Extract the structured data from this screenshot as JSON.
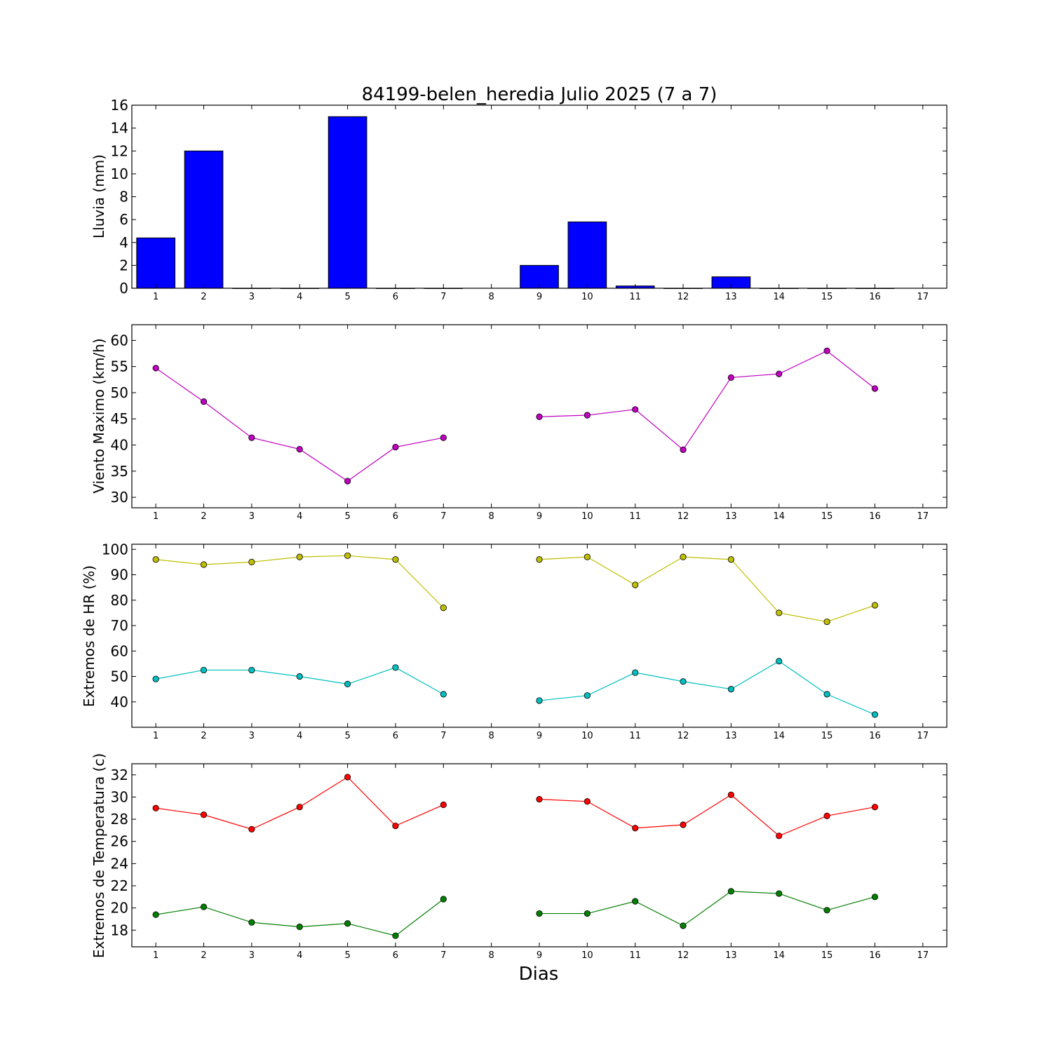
{
  "chart_data": [
    {
      "type": "bar",
      "title": "84199-belen_heredia Julio 2025  (7 a 7)",
      "ylabel": "Lluvia (mm)",
      "xlabel": "",
      "ylim": [
        0,
        16
      ],
      "yticks": [
        0,
        2,
        4,
        6,
        8,
        10,
        12,
        14,
        16
      ],
      "xticks": [
        1,
        2,
        3,
        4,
        5,
        6,
        7,
        8,
        9,
        10,
        11,
        12,
        13,
        14,
        15,
        16,
        17
      ],
      "xlim": [
        0.5,
        17.5
      ],
      "grid": false,
      "series": [
        {
          "color": "#0000ff",
          "x": [
            1,
            2,
            3,
            4,
            5,
            6,
            7,
            8,
            9,
            10,
            11,
            12,
            13,
            14,
            15,
            16
          ],
          "values": [
            4.4,
            12.0,
            0,
            0,
            15.0,
            0,
            0,
            null,
            2.0,
            5.8,
            0.2,
            0,
            1.0,
            0,
            0,
            0
          ]
        }
      ]
    },
    {
      "type": "line",
      "ylabel": "Viento Maximo (km/h)",
      "xlabel": "",
      "ylim": [
        28,
        63
      ],
      "yticks": [
        30,
        35,
        40,
        45,
        50,
        55,
        60
      ],
      "xticks": [
        1,
        2,
        3,
        4,
        5,
        6,
        7,
        8,
        9,
        10,
        11,
        12,
        13,
        14,
        15,
        16,
        17
      ],
      "xlim": [
        0.5,
        17.5
      ],
      "grid": false,
      "series": [
        {
          "color": "#bf00bf",
          "x": [
            1,
            2,
            3,
            4,
            5,
            6,
            7,
            8,
            9,
            10,
            11,
            12,
            13,
            14,
            15,
            16
          ],
          "values": [
            54.7,
            48.3,
            41.4,
            39.2,
            33.1,
            39.6,
            41.4,
            null,
            45.4,
            45.7,
            46.8,
            39.1,
            52.9,
            53.6,
            58.0,
            50.8
          ]
        }
      ]
    },
    {
      "type": "line",
      "ylabel": "Extremos de HR (%)",
      "xlabel": "",
      "ylim": [
        30,
        102
      ],
      "yticks": [
        40,
        50,
        60,
        70,
        80,
        90,
        100
      ],
      "xticks": [
        1,
        2,
        3,
        4,
        5,
        6,
        7,
        8,
        9,
        10,
        11,
        12,
        13,
        14,
        15,
        16,
        17
      ],
      "xlim": [
        0.5,
        17.5
      ],
      "grid": false,
      "series": [
        {
          "color": "#bfbf00",
          "x": [
            1,
            2,
            3,
            4,
            5,
            6,
            7,
            8,
            9,
            10,
            11,
            12,
            13,
            14,
            15,
            16
          ],
          "values": [
            96,
            94,
            95,
            97,
            97.5,
            96,
            77,
            null,
            96,
            97,
            86,
            97,
            96,
            75,
            71.5,
            78
          ]
        },
        {
          "color": "#00bfbf",
          "x": [
            1,
            2,
            3,
            4,
            5,
            6,
            7,
            8,
            9,
            10,
            11,
            12,
            13,
            14,
            15,
            16
          ],
          "values": [
            49,
            52.5,
            52.5,
            50,
            47,
            53.5,
            43,
            null,
            40.5,
            42.5,
            51.5,
            48,
            45,
            56,
            43,
            35
          ]
        }
      ]
    },
    {
      "type": "line",
      "ylabel": "Extremos de Temperatura (c)",
      "xlabel": "Dias",
      "ylim": [
        16.5,
        33
      ],
      "yticks": [
        18,
        20,
        22,
        24,
        26,
        28,
        30,
        32
      ],
      "xticks": [
        1,
        2,
        3,
        4,
        5,
        6,
        7,
        8,
        9,
        10,
        11,
        12,
        13,
        14,
        15,
        16,
        17
      ],
      "xlim": [
        0.5,
        17.5
      ],
      "grid": false,
      "series": [
        {
          "color": "#ff0000",
          "x": [
            1,
            2,
            3,
            4,
            5,
            6,
            7,
            8,
            9,
            10,
            11,
            12,
            13,
            14,
            15,
            16
          ],
          "values": [
            29.0,
            28.4,
            27.1,
            29.1,
            31.8,
            27.4,
            29.3,
            null,
            29.8,
            29.6,
            27.2,
            27.5,
            30.2,
            26.5,
            28.3,
            29.1
          ]
        },
        {
          "color": "#007f00",
          "x": [
            1,
            2,
            3,
            4,
            5,
            6,
            7,
            8,
            9,
            10,
            11,
            12,
            13,
            14,
            15,
            16
          ],
          "values": [
            19.4,
            20.1,
            18.7,
            18.3,
            18.6,
            17.5,
            20.8,
            null,
            19.5,
            19.5,
            20.6,
            18.4,
            21.5,
            21.3,
            19.8,
            21.0
          ]
        }
      ]
    }
  ]
}
